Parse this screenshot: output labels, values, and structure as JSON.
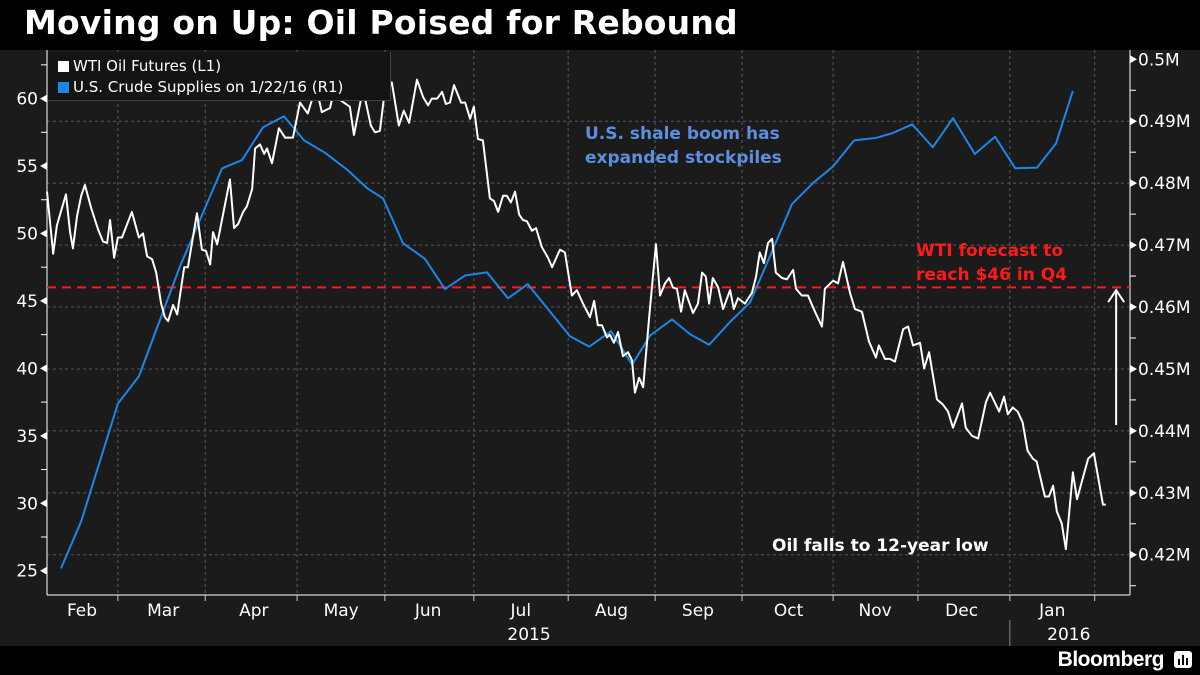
{
  "header": {
    "title": "Moving on Up: Oil Poised for Rebound"
  },
  "footer": {
    "brand": "Bloomberg",
    "brand_icon": "bloomberg-chart-icon"
  },
  "colors": {
    "wti": "#ffffff",
    "supplies": "#1e86e8",
    "forecast": "#ff1a1a",
    "shale_note": "#5b8fe0",
    "grid": "#5a5a5a"
  },
  "chart_data": {
    "type": "line",
    "title": "Moving on Up: Oil Poised for Rebound",
    "x_unit": "trading days from start of period",
    "x_range": [
      0,
      262
    ],
    "legend_placement": "top-left",
    "legend": [
      "WTI Oil Futures (L1)",
      "U.S. Crude Supplies on 1/22/16 (R1)"
    ],
    "grid": true,
    "left_axis": {
      "range": [
        23.2,
        63.6
      ],
      "ticks": [
        25,
        30,
        35,
        40,
        45,
        50,
        55,
        60
      ],
      "tick_labels": [
        "25",
        "30",
        "35",
        "40",
        "45",
        "50",
        "55",
        "60"
      ]
    },
    "right_axis": {
      "range": [
        0.4135,
        0.5015
      ],
      "ticks": [
        0.42,
        0.43,
        0.44,
        0.45,
        0.46,
        0.47,
        0.48,
        0.49,
        0.5
      ],
      "tick_labels": [
        "0.42M",
        "0.43M",
        "0.44M",
        "0.45M",
        "0.46M",
        "0.47M",
        "0.48M",
        "0.49M",
        "0.5M"
      ]
    },
    "x_axis": {
      "months": [
        {
          "label": "Feb",
          "center": 8.5
        },
        {
          "label": "Mar",
          "center": 28.2
        },
        {
          "label": "Apr",
          "center": 50.2
        },
        {
          "label": "May",
          "center": 71.4
        },
        {
          "label": "Jun",
          "center": 92.5
        },
        {
          "label": "Jul",
          "center": 115
        },
        {
          "label": "Aug",
          "center": 137
        },
        {
          "label": "Sep",
          "center": 158
        },
        {
          "label": "Oct",
          "center": 180
        },
        {
          "label": "Nov",
          "center": 201
        },
        {
          "label": "Dec",
          "center": 222
        },
        {
          "label": "Jan",
          "center": 244
        }
      ],
      "month_boundaries": [
        17.2,
        38.4,
        60.7,
        82,
        103.6,
        126.5,
        147.6,
        168.7,
        190.8,
        211.4,
        233.7,
        254.3
      ],
      "years": [
        {
          "label": "2015",
          "center": 117
        },
        {
          "label": "2016",
          "center": 248
        }
      ],
      "year_boundary": 233.7
    },
    "series": [
      {
        "name": "WTI Oil Futures (L1)",
        "axis": "left",
        "points": [
          [
            0,
            53.1
          ],
          [
            1.5,
            48.5
          ],
          [
            2.4,
            50.6
          ],
          [
            4.6,
            52.9
          ],
          [
            5.6,
            50.1
          ],
          [
            6.3,
            48.9
          ],
          [
            7.3,
            51.3
          ],
          [
            8.3,
            52.8
          ],
          [
            9.2,
            53.6
          ],
          [
            10.7,
            51.9
          ],
          [
            12.4,
            50.3
          ],
          [
            13.6,
            49.4
          ],
          [
            14.6,
            49.3
          ],
          [
            15.3,
            51.0
          ],
          [
            16.3,
            48.2
          ],
          [
            17.2,
            49.7
          ],
          [
            18.2,
            49.7
          ],
          [
            20.6,
            51.6
          ],
          [
            22.3,
            49.7
          ],
          [
            23.3,
            50.0
          ],
          [
            24.3,
            48.3
          ],
          [
            25.5,
            48.1
          ],
          [
            26.5,
            47.1
          ],
          [
            27.7,
            44.8
          ],
          [
            28.6,
            43.8
          ],
          [
            29.4,
            43.5
          ],
          [
            30.6,
            44.7
          ],
          [
            31.6,
            44.0
          ],
          [
            33.3,
            47.5
          ],
          [
            34.2,
            47.5
          ],
          [
            36.4,
            51.5
          ],
          [
            37.6,
            48.8
          ],
          [
            38.6,
            48.7
          ],
          [
            39.6,
            47.7
          ],
          [
            40.3,
            50.1
          ],
          [
            41.3,
            49.2
          ],
          [
            44.4,
            54.0
          ],
          [
            45.4,
            50.4
          ],
          [
            46.4,
            50.7
          ],
          [
            47.6,
            51.6
          ],
          [
            48.5,
            52.0
          ],
          [
            49.8,
            53.3
          ],
          [
            50.5,
            56.3
          ],
          [
            51.7,
            56.6
          ],
          [
            52.7,
            55.9
          ],
          [
            53.4,
            56.3
          ],
          [
            54.6,
            55.2
          ],
          [
            56.3,
            57.8
          ],
          [
            57.8,
            57.1
          ],
          [
            59.7,
            57.1
          ],
          [
            61.4,
            59.7
          ],
          [
            63.3,
            58.9
          ],
          [
            65.3,
            60.9
          ],
          [
            66.7,
            59.0
          ],
          [
            68.7,
            59.3
          ],
          [
            69.7,
            60.7
          ],
          [
            71.1,
            59.9
          ],
          [
            73.5,
            59.4
          ],
          [
            74.5,
            57.3
          ],
          [
            76.7,
            60.7
          ],
          [
            78.6,
            58.0
          ],
          [
            79.6,
            57.5
          ],
          [
            80.8,
            57.6
          ],
          [
            81.8,
            60.1
          ],
          [
            83.7,
            61.2
          ],
          [
            85.4,
            58.0
          ],
          [
            86.6,
            59.1
          ],
          [
            87.9,
            58.2
          ],
          [
            89.8,
            61.4
          ],
          [
            91.3,
            60.1
          ],
          [
            92.5,
            59.5
          ],
          [
            93.4,
            60.0
          ],
          [
            94.7,
            60.0
          ],
          [
            95.9,
            60.5
          ],
          [
            96.8,
            59.6
          ],
          [
            97.8,
            59.7
          ],
          [
            98.8,
            61.0
          ],
          [
            100.5,
            59.7
          ],
          [
            101.5,
            59.7
          ],
          [
            102.7,
            58.5
          ],
          [
            103.6,
            59.4
          ],
          [
            104.6,
            57.0
          ],
          [
            105.8,
            56.9
          ],
          [
            107.5,
            52.6
          ],
          [
            108.5,
            52.4
          ],
          [
            109.5,
            51.6
          ],
          [
            110.7,
            52.8
          ],
          [
            111.6,
            52.8
          ],
          [
            112.6,
            52.3
          ],
          [
            113.6,
            53.1
          ],
          [
            114.6,
            51.4
          ],
          [
            115.5,
            51.0
          ],
          [
            116.5,
            50.9
          ],
          [
            117.7,
            50.2
          ],
          [
            118.7,
            50.4
          ],
          [
            120.1,
            49.0
          ],
          [
            121.6,
            48.2
          ],
          [
            122.6,
            47.5
          ],
          [
            124.5,
            48.8
          ],
          [
            125.7,
            48.6
          ],
          [
            127.4,
            45.4
          ],
          [
            128.6,
            45.8
          ],
          [
            130.1,
            44.8
          ],
          [
            131.8,
            43.8
          ],
          [
            132.8,
            45.0
          ],
          [
            133.7,
            43.2
          ],
          [
            134.7,
            43.2
          ],
          [
            135.9,
            42.3
          ],
          [
            136.6,
            42.5
          ],
          [
            137.6,
            41.9
          ],
          [
            138.6,
            42.7
          ],
          [
            139.8,
            40.9
          ],
          [
            141.0,
            41.2
          ],
          [
            142.0,
            40.6
          ],
          [
            142.7,
            38.2
          ],
          [
            143.7,
            39.3
          ],
          [
            144.7,
            38.6
          ],
          [
            146.1,
            43.6
          ],
          [
            147.8,
            49.2
          ],
          [
            148.8,
            45.4
          ],
          [
            150.0,
            46.3
          ],
          [
            151.0,
            46.7
          ],
          [
            151.9,
            46.0
          ],
          [
            152.9,
            45.9
          ],
          [
            153.9,
            44.2
          ],
          [
            154.8,
            45.8
          ],
          [
            156.8,
            44.1
          ],
          [
            158.0,
            44.8
          ],
          [
            159.0,
            47.1
          ],
          [
            159.9,
            46.8
          ],
          [
            160.7,
            44.8
          ],
          [
            161.6,
            46.7
          ],
          [
            162.9,
            46.0
          ],
          [
            164.1,
            44.4
          ],
          [
            165.8,
            45.8
          ],
          [
            166.7,
            44.4
          ],
          [
            167.7,
            45.2
          ],
          [
            169.4,
            44.8
          ],
          [
            171.1,
            45.6
          ],
          [
            172.1,
            46.8
          ],
          [
            173.0,
            48.6
          ],
          [
            174.0,
            47.8
          ],
          [
            175.0,
            49.3
          ],
          [
            176.0,
            49.6
          ],
          [
            176.9,
            47.1
          ],
          [
            178.4,
            46.7
          ],
          [
            179.6,
            46.6
          ],
          [
            181.1,
            47.3
          ],
          [
            181.8,
            45.9
          ],
          [
            183.2,
            45.4
          ],
          [
            184.7,
            45.4
          ],
          [
            186.4,
            44.2
          ],
          [
            188.1,
            43.1
          ],
          [
            188.8,
            45.9
          ],
          [
            190.8,
            46.5
          ],
          [
            192.0,
            46.3
          ],
          [
            193.2,
            47.9
          ],
          [
            194.9,
            45.6
          ],
          [
            196.1,
            44.4
          ],
          [
            197.8,
            44.2
          ],
          [
            199.5,
            42.0
          ],
          [
            201.2,
            40.8
          ],
          [
            201.9,
            41.7
          ],
          [
            203.4,
            40.7
          ],
          [
            204.6,
            40.7
          ],
          [
            205.8,
            40.5
          ],
          [
            207.8,
            42.9
          ],
          [
            209.0,
            43.1
          ],
          [
            210.2,
            41.7
          ],
          [
            211.9,
            41.9
          ],
          [
            212.9,
            40.0
          ],
          [
            214.1,
            41.2
          ],
          [
            216.0,
            37.7
          ],
          [
            217.5,
            37.3
          ],
          [
            218.7,
            36.8
          ],
          [
            219.9,
            35.6
          ],
          [
            222.1,
            37.4
          ],
          [
            223.0,
            35.6
          ],
          [
            224.5,
            35.0
          ],
          [
            226.0,
            34.8
          ],
          [
            227.9,
            37.5
          ],
          [
            228.9,
            38.2
          ],
          [
            231.1,
            36.8
          ],
          [
            232.3,
            37.9
          ],
          [
            233.2,
            36.6
          ],
          [
            234.4,
            37.1
          ],
          [
            235.6,
            36.8
          ],
          [
            236.8,
            36.0
          ],
          [
            238.0,
            33.9
          ],
          [
            239.3,
            33.3
          ],
          [
            240.2,
            33.1
          ],
          [
            241.5,
            31.4
          ],
          [
            242.2,
            30.5
          ],
          [
            243.2,
            30.5
          ],
          [
            244.2,
            31.3
          ],
          [
            245.1,
            29.4
          ],
          [
            246.3,
            28.5
          ],
          [
            247.3,
            26.6
          ],
          [
            249.0,
            32.3
          ],
          [
            250.0,
            30.3
          ],
          [
            252.7,
            33.3
          ],
          [
            254.1,
            33.7
          ],
          [
            256.3,
            29.9
          ],
          [
            257.0,
            29.9
          ]
        ]
      },
      {
        "name": "U.S. Crude Supplies on 1/22/16 (R1)",
        "axis": "right",
        "points": [
          [
            3.4,
            0.4178
          ],
          [
            8.3,
            0.4254
          ],
          [
            17.2,
            0.4444
          ],
          [
            22.3,
            0.4488
          ],
          [
            32.3,
            0.4666
          ],
          [
            42.5,
            0.4824
          ],
          [
            47.3,
            0.4837
          ],
          [
            52.4,
            0.489
          ],
          [
            57.5,
            0.4908
          ],
          [
            62.4,
            0.4869
          ],
          [
            67.5,
            0.4849
          ],
          [
            72.8,
            0.4822
          ],
          [
            77.7,
            0.4792
          ],
          [
            81.6,
            0.4775
          ],
          [
            86.4,
            0.4703
          ],
          [
            91.7,
            0.4678
          ],
          [
            96.6,
            0.4629
          ],
          [
            101.5,
            0.4651
          ],
          [
            106.8,
            0.4656
          ],
          [
            111.9,
            0.4614
          ],
          [
            116.7,
            0.4637
          ],
          [
            126.9,
            0.4553
          ],
          [
            131.6,
            0.4536
          ],
          [
            136.9,
            0.4561
          ],
          [
            142.0,
            0.4507
          ],
          [
            146.4,
            0.4554
          ],
          [
            151.7,
            0.458
          ],
          [
            156.1,
            0.4556
          ],
          [
            160.7,
            0.4539
          ],
          [
            165.8,
            0.4576
          ],
          [
            170.6,
            0.4607
          ],
          [
            176.0,
            0.469
          ],
          [
            180.8,
            0.4766
          ],
          [
            185.9,
            0.48
          ],
          [
            190.8,
            0.4827
          ],
          [
            195.9,
            0.4869
          ],
          [
            201.2,
            0.4873
          ],
          [
            205.3,
            0.4881
          ],
          [
            210.0,
            0.4895
          ],
          [
            215.0,
            0.4858
          ],
          [
            219.9,
            0.4905
          ],
          [
            225.2,
            0.4847
          ],
          [
            230.1,
            0.4875
          ],
          [
            235.0,
            0.4824
          ],
          [
            240.3,
            0.4825
          ],
          [
            244.9,
            0.4864
          ],
          [
            249.0,
            0.4949
          ]
        ]
      }
    ],
    "reference_line": {
      "axis": "left",
      "value": 46,
      "style": "dashed"
    },
    "annotations": {
      "shale": [
        "U.S. shale boom has",
        "expanded stockpiles"
      ],
      "forecast": [
        "WTI forecast to",
        "reach $46 in Q4"
      ],
      "low": "Oil falls to 12-year low",
      "rebound_arrow": {
        "from": 35.8,
        "to": 45.8,
        "at": 259.5
      }
    }
  }
}
